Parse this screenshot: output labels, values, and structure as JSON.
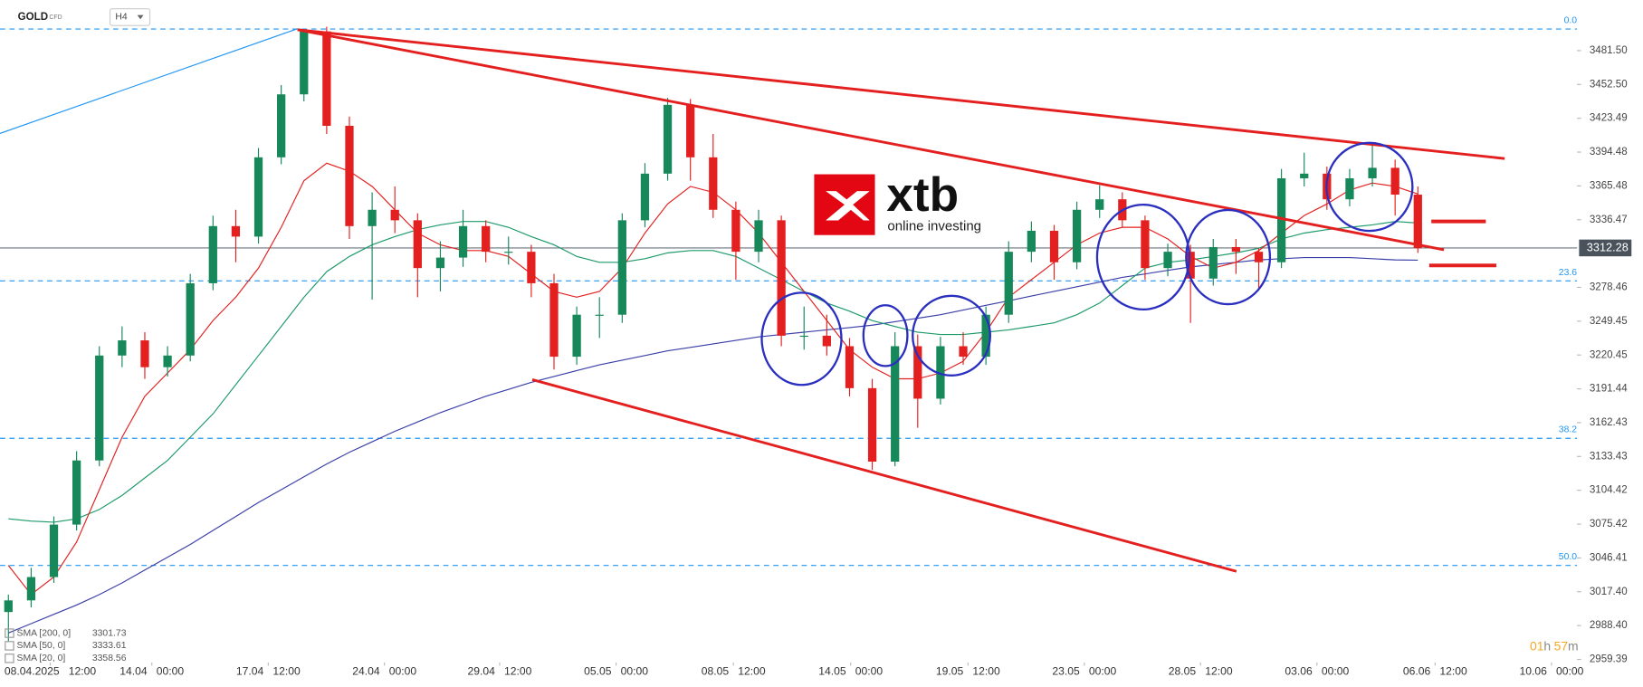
{
  "header": {
    "symbol": "GOLD",
    "instrument_type": "CFD",
    "interval": "H4"
  },
  "logo": {
    "brand": "xtb",
    "tagline": "online investing"
  },
  "countdown": [
    "01",
    "h",
    "57",
    "m"
  ],
  "chart_data": {
    "type": "candlestick",
    "up_color": "#17885a",
    "down_color": "#e3201f",
    "open": [
      3000,
      3010,
      3030,
      3075,
      3130,
      3220,
      3233,
      3210,
      3220,
      3282,
      3331,
      3322,
      3390,
      3444,
      3498,
      3417,
      3331,
      3345,
      3336,
      3295,
      3304,
      3331,
      3309,
      3309,
      3282,
      3219,
      3255,
      3255,
      3336,
      3376,
      3435,
      3390,
      3345,
      3309,
      3336,
      3237,
      3237,
      3228,
      3192,
      3129,
      3228,
      3183,
      3228,
      3219,
      3255,
      3309,
      3327,
      3300,
      3345,
      3354,
      3336,
      3295,
      3309,
      3286,
      3313,
      3309,
      3300,
      3372,
      3376,
      3354,
      3372,
      3381,
      3358
    ],
    "high": [
      3015,
      3038,
      3082,
      3138,
      3228,
      3245,
      3240,
      3228,
      3290,
      3340,
      3345,
      3398,
      3452,
      3500,
      3502,
      3425,
      3360,
      3365,
      3342,
      3318,
      3345,
      3336,
      3322,
      3315,
      3290,
      3262,
      3270,
      3342,
      3385,
      3441,
      3440,
      3410,
      3352,
      3345,
      3340,
      3262,
      3255,
      3235,
      3200,
      3240,
      3238,
      3236,
      3240,
      3262,
      3318,
      3335,
      3332,
      3352,
      3366,
      3360,
      3340,
      3316,
      3315,
      3320,
      3320,
      3312,
      3380,
      3394,
      3382,
      3380,
      3400,
      3388,
      3365
    ],
    "low": [
      2975,
      3004,
      3025,
      3070,
      3125,
      3210,
      3200,
      3202,
      3215,
      3276,
      3300,
      3316,
      3384,
      3438,
      3410,
      3320,
      3268,
      3325,
      3270,
      3275,
      3296,
      3300,
      3298,
      3270,
      3208,
      3212,
      3235,
      3248,
      3330,
      3370,
      3370,
      3338,
      3285,
      3300,
      3228,
      3225,
      3220,
      3185,
      3122,
      3125,
      3158,
      3178,
      3212,
      3212,
      3248,
      3300,
      3285,
      3294,
      3338,
      3330,
      3285,
      3288,
      3248,
      3280,
      3290,
      3276,
      3295,
      3365,
      3345,
      3348,
      3365,
      3340,
      3308
    ],
    "close": [
      3010,
      3030,
      3075,
      3130,
      3220,
      3233,
      3210,
      3220,
      3282,
      3331,
      3322,
      3390,
      3444,
      3498,
      3417,
      3331,
      3345,
      3336,
      3295,
      3304,
      3331,
      3309,
      3309,
      3282,
      3219,
      3255,
      3255,
      3336,
      3376,
      3435,
      3390,
      3345,
      3309,
      3336,
      3237,
      3237,
      3228,
      3192,
      3129,
      3228,
      3183,
      3228,
      3219,
      3255,
      3309,
      3327,
      3300,
      3345,
      3354,
      3336,
      3295,
      3309,
      3286,
      3313,
      3309,
      3300,
      3372,
      3376,
      3354,
      3372,
      3381,
      3358,
      3312
    ],
    "series": [
      {
        "name": "SMA [200, 0]",
        "color": "#3a3fa8",
        "values": [
          2982,
          2990,
          2998,
          3006,
          3015,
          3025,
          3036,
          3047,
          3058,
          3070,
          3082,
          3094,
          3105,
          3116,
          3127,
          3137,
          3146,
          3155,
          3163,
          3171,
          3178,
          3185,
          3191,
          3197,
          3202,
          3207,
          3212,
          3216,
          3220,
          3224,
          3227,
          3230,
          3233,
          3236,
          3238,
          3240,
          3242,
          3244,
          3246,
          3249,
          3252,
          3255,
          3259,
          3263,
          3267,
          3271,
          3275,
          3279,
          3283,
          3287,
          3290,
          3293,
          3296,
          3298,
          3300,
          3302,
          3303,
          3304,
          3304,
          3304,
          3303,
          3302,
          3301.73
        ]
      },
      {
        "name": "SMA [50, 0]",
        "color": "#1e9a6a",
        "values": [
          3080,
          3078,
          3077,
          3080,
          3088,
          3100,
          3115,
          3130,
          3150,
          3170,
          3195,
          3220,
          3245,
          3270,
          3292,
          3305,
          3315,
          3322,
          3328,
          3332,
          3335,
          3335,
          3330,
          3322,
          3315,
          3305,
          3300,
          3300,
          3303,
          3308,
          3310,
          3310,
          3305,
          3295,
          3285,
          3275,
          3265,
          3258,
          3250,
          3245,
          3240,
          3238,
          3238,
          3240,
          3242,
          3245,
          3248,
          3255,
          3265,
          3280,
          3295,
          3300,
          3302,
          3305,
          3308,
          3312,
          3320,
          3325,
          3328,
          3330,
          3332,
          3335,
          3333.61
        ]
      },
      {
        "name": "SMA [20, 0]",
        "color": "#e3201f",
        "values": [
          3040,
          3015,
          3030,
          3060,
          3105,
          3150,
          3185,
          3205,
          3225,
          3250,
          3270,
          3295,
          3330,
          3370,
          3385,
          3378,
          3365,
          3345,
          3325,
          3315,
          3310,
          3310,
          3305,
          3290,
          3275,
          3270,
          3275,
          3295,
          3325,
          3350,
          3365,
          3360,
          3345,
          3325,
          3300,
          3275,
          3250,
          3225,
          3210,
          3200,
          3200,
          3205,
          3215,
          3240,
          3270,
          3285,
          3300,
          3315,
          3325,
          3330,
          3330,
          3320,
          3305,
          3295,
          3300,
          3310,
          3325,
          3340,
          3350,
          3362,
          3368,
          3365,
          3358.56
        ]
      }
    ],
    "last_price": 3312.28,
    "fib_levels": [
      {
        "label": "0.0",
        "price": 3500
      },
      {
        "label": "23.6",
        "price": 3284
      },
      {
        "label": "38.2",
        "price": 3149
      },
      {
        "label": "50.0",
        "price": 3040
      }
    ],
    "xlim": [
      -0.37,
      69
    ],
    "xticks": [
      {
        "value": 1.84,
        "label": "08.04.2025   12:00"
      },
      {
        "value": 6.31,
        "label": "14.04   00:00"
      },
      {
        "value": 11.43,
        "label": "17.04   12:00"
      },
      {
        "value": 16.54,
        "label": "24.04   00:00"
      },
      {
        "value": 21.61,
        "label": "29.04   12:00"
      },
      {
        "value": 26.73,
        "label": "05.05   00:00"
      },
      {
        "value": 31.89,
        "label": "08.05   12:00"
      },
      {
        "value": 37.05,
        "label": "14.05   00:00"
      },
      {
        "value": 42.21,
        "label": "19.05   12:00"
      },
      {
        "value": 47.33,
        "label": "23.05   00:00"
      },
      {
        "value": 52.44,
        "label": "28.05   12:00"
      },
      {
        "value": 57.56,
        "label": "03.06   00:00"
      },
      {
        "value": 62.76,
        "label": "06.06   12:00"
      },
      {
        "value": 67.88,
        "label": "10.06   00:00"
      }
    ],
    "ylim": [
      2956.7,
      3524.6
    ],
    "yticks": [
      2959.39,
      {
        "value": 2988.4,
        "label": "2988.40"
      },
      {
        "value": 3017.4,
        "label": "3017.40"
      },
      3046.41,
      3075.42,
      3104.42,
      3133.43,
      3162.43,
      3191.44,
      3220.45,
      3249.45,
      3278.46,
      3336.47,
      3365.48,
      3394.48,
      3423.49,
      {
        "value": 3452.5,
        "label": "3452.50"
      },
      {
        "value": 3481.5,
        "label": "3481.50"
      }
    ]
  }
}
